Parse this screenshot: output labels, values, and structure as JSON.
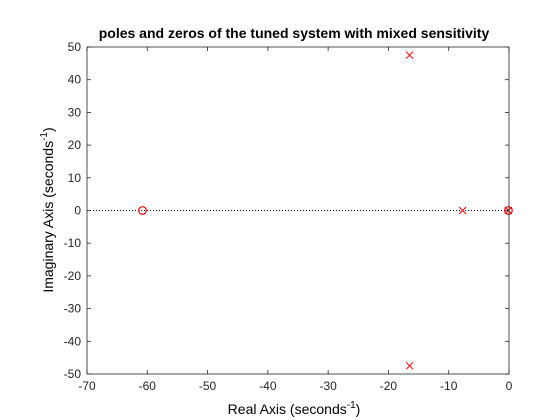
{
  "chart_data": {
    "type": "scatter",
    "title": "poles and zeros of the tuned system with mixed sensitivity",
    "xlabel": {
      "prefix": "Real Axis (seconds",
      "sup": "-1",
      "suffix": ")"
    },
    "ylabel": {
      "prefix": "Imaginary Axis (seconds",
      "sup": "-1",
      "suffix": ")"
    },
    "xlim": [
      -70,
      0
    ],
    "ylim": [
      -50,
      50
    ],
    "xticks": [
      -70,
      -60,
      -50,
      -40,
      -30,
      -20,
      -10,
      0
    ],
    "yticks": [
      -50,
      -40,
      -30,
      -20,
      -10,
      0,
      10,
      20,
      30,
      40,
      50
    ],
    "grid": false,
    "reference_line": {
      "y": 0,
      "style": "dotted",
      "color": "#000000"
    },
    "series": [
      {
        "marker": "x",
        "color": "#ff0000",
        "points": [
          {
            "x": -16.5,
            "y": 47.5
          },
          {
            "x": -16.5,
            "y": -47.5
          },
          {
            "x": -7.7,
            "y": 0
          },
          {
            "x": -0.1,
            "y": 0
          }
        ]
      },
      {
        "marker": "o",
        "color": "#ff0000",
        "points": [
          {
            "x": -60.8,
            "y": 0
          },
          {
            "x": -0.1,
            "y": 0
          }
        ]
      }
    ]
  }
}
